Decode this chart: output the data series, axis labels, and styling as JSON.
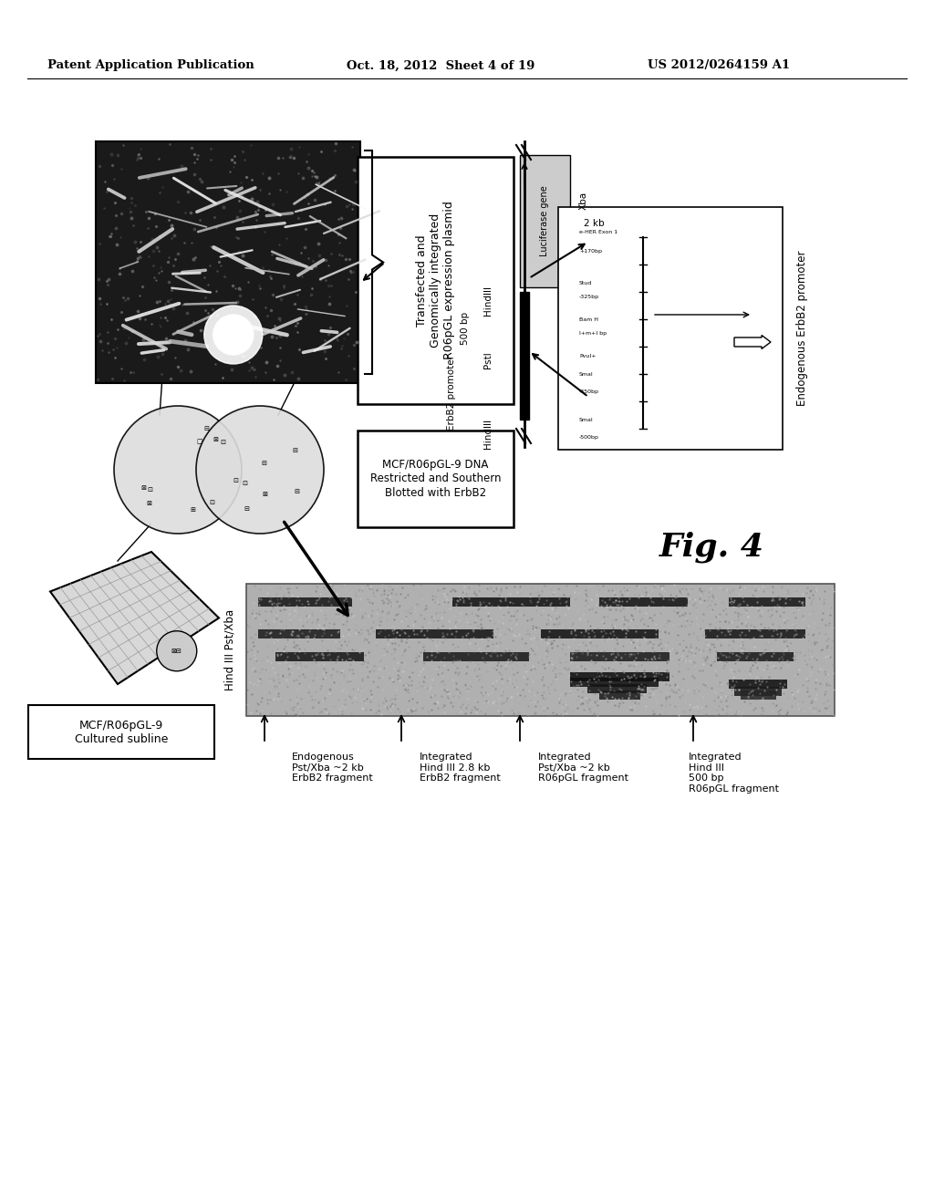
{
  "bg_color": "#ffffff",
  "header_left": "Patent Application Publication",
  "header_center": "Oct. 18, 2012  Sheet 4 of 19",
  "header_right": "US 2012/0264159 A1",
  "fig_label": "Fig. 4",
  "box_mcf_label": "MCF/R06pGL-9\nCultured subline",
  "box_transfected_label": "Transfected and\nGenomically integrated\nR06pGL expression plasmid",
  "box_southern_label": "MCF/R06pGL-9 DNA\nRestricted and Southern\nBlotted with ErbB2",
  "endogenous_erbb2_label": "Endogenous ErbB2 promoter",
  "hind_label": "Hind III Pst/Xba",
  "band_labels": [
    "Endogenous\nPst/Xba ~2 kb\nErbB2 fragment",
    "Integrated\nHind III 2.8 kb\nErbB2 fragment",
    "Integrated\nPst/Xba ~2 kb\nR06pGL fragment",
    "Integrated\nHind III\n500 bp\nR06pGL fragment"
  ],
  "luc_gene_label": "Luciferase gene",
  "erbb2_promoter_label": "ErbB2 promoter",
  "labels_500bp": "500 bp",
  "label_2kb": "2 kb",
  "label_hindiii_upper": "HindIII",
  "label_psti": "PstI",
  "label_hindiii_lower": "HindIII",
  "label_xba": "Xba"
}
